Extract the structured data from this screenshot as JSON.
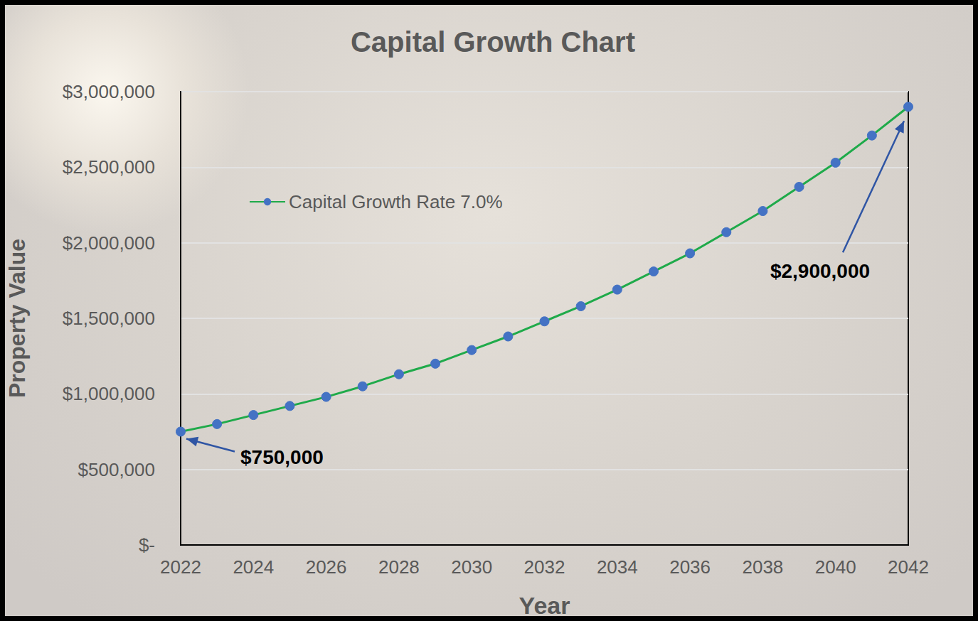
{
  "chart_data": {
    "type": "line",
    "title": "Capital Growth Chart",
    "x_label": "Year",
    "y_label": "Property Value",
    "x": [
      2022,
      2023,
      2024,
      2025,
      2026,
      2027,
      2028,
      2029,
      2030,
      2031,
      2032,
      2033,
      2034,
      2035,
      2036,
      2037,
      2038,
      2039,
      2040,
      2041,
      2042
    ],
    "series": [
      {
        "name": "Capital Growth Rate 7.0%",
        "color": "#1faa4a",
        "marker": "circle",
        "values": [
          750000,
          800000,
          860000,
          920000,
          980000,
          1050000,
          1130000,
          1200000,
          1290000,
          1380000,
          1480000,
          1580000,
          1690000,
          1810000,
          1930000,
          2070000,
          2210000,
          2370000,
          2530000,
          2710000,
          2900000
        ]
      }
    ],
    "xlim": [
      2022,
      2042
    ],
    "xticks": [
      2022,
      2024,
      2026,
      2028,
      2030,
      2032,
      2034,
      2036,
      2038,
      2040,
      2042
    ],
    "ylim": [
      0,
      3000000
    ],
    "yticks": [
      {
        "value": 0,
        "label": "$-"
      },
      {
        "value": 500000,
        "label": "$500,000"
      },
      {
        "value": 1000000,
        "label": "$1,000,000"
      },
      {
        "value": 1500000,
        "label": "$1,500,000"
      },
      {
        "value": 2000000,
        "label": "$2,000,000"
      },
      {
        "value": 2500000,
        "label": "$2,500,000"
      },
      {
        "value": 3000000,
        "label": "$3,000,000"
      }
    ],
    "grid": true,
    "legend": "upper left",
    "annotations": [
      {
        "text": "$750,000",
        "x": 2022,
        "y": 750000
      },
      {
        "text": "$2,900,000",
        "x": 2042,
        "y": 2900000
      }
    ]
  }
}
